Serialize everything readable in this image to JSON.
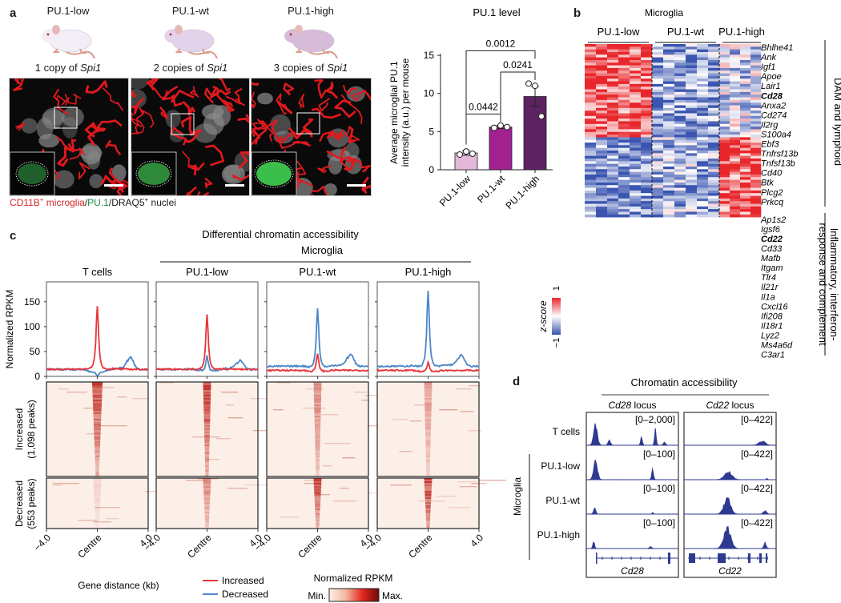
{
  "panel_a": {
    "letter": "a",
    "groups": [
      {
        "name": "PU.1-low",
        "copies_prefix": "1 copy of ",
        "gene": "Spi1",
        "mouse_color": "#f3eef6"
      },
      {
        "name": "PU.1-wt",
        "copies_prefix": "2 copies of ",
        "gene": "Spi1",
        "mouse_color": "#e2d3ea"
      },
      {
        "name": "PU.1-high",
        "copies_prefix": "3 copies of ",
        "gene": "Spi1",
        "mouse_color": "#d6bcd8"
      }
    ],
    "stain_caption": {
      "part1": "CD11B",
      "part1_sup": "+",
      "part1_rest": " microglia",
      "sep1": "/",
      "part2": "PU.1",
      "sep2": "/",
      "part3": "DRAQ5",
      "part3_sup": "+",
      "part3_rest": " nuclei"
    },
    "colors": {
      "cd11b": "#d7262b",
      "pu1": "#1a8a3a",
      "nuclei": "#cccccc"
    }
  },
  "chart_data": [
    {
      "id": "pu1-level",
      "type": "bar",
      "title": "PU.1 level",
      "ylabel_line1": "Average microglial PU.1",
      "ylabel_line2": "intensity (a.u.) per mouse",
      "categories": [
        "PU.1-low",
        "PU.1-wt",
        "PU.1-high"
      ],
      "values": [
        2.2,
        5.6,
        9.6
      ],
      "error": [
        0.3,
        0.2,
        1.3
      ],
      "points": [
        [
          2.0,
          2.4,
          2.1
        ],
        [
          5.5,
          5.8,
          5.6
        ],
        [
          11.3,
          11.0,
          7.0
        ]
      ],
      "colors": [
        "#e4b8d8",
        "#a3208f",
        "#5c2262"
      ],
      "ylim": [
        0,
        17
      ],
      "yticks": [
        0,
        5,
        10,
        15
      ],
      "significance": [
        {
          "from": 0,
          "to": 1,
          "label": "0.0442"
        },
        {
          "from": 1,
          "to": 2,
          "label": "0.0241"
        },
        {
          "from": 0,
          "to": 2,
          "label": "0.0012"
        }
      ]
    },
    {
      "id": "rna-heatmap",
      "type": "heatmap",
      "title": "Microglia",
      "groups": [
        "PU.1-low",
        "PU.1-wt",
        "PU.1-high"
      ],
      "columns_per_group": [
        6,
        6,
        4
      ],
      "colorbar": {
        "label": "z-score",
        "min": "−1",
        "max": "1",
        "low_color": "#3a55b0",
        "mid_color": "#ffffff",
        "high_color": "#e8262b"
      },
      "gene_sets": [
        {
          "label": "DAM and lymphoid",
          "genes": [
            "Bhlhe41",
            "Ank",
            "Igf1",
            "Apoe",
            "Lair1",
            "Cd28",
            "Anxa2",
            "Cd274",
            "Il2rg",
            "S100a4",
            "Ebf3",
            "Tnfrsf13b",
            "Tnfsf13b",
            "Cd40",
            "Btk",
            "Plcg2",
            "Prkcq"
          ],
          "bold": [
            "Cd28"
          ],
          "pattern": [
            0.75,
            -0.55,
            -0.25
          ]
        },
        {
          "label_line1": "Inflammatory, interferon-",
          "label_line2": "response and complement",
          "genes": [
            "Ap1s2",
            "Igsf6",
            "Cd22",
            "Cd33",
            "Mafb",
            "Itgam",
            "Tlr4",
            "Il21r",
            "Il1a",
            "Cxcl16",
            "Ifi208",
            "Il18r1",
            "Lyz2",
            "Ms4a6d",
            "C3ar1"
          ],
          "bold": [
            "Cd22"
          ],
          "pattern": [
            -0.65,
            -0.45,
            0.75
          ]
        }
      ]
    },
    {
      "id": "atac-profiles",
      "type": "line",
      "title": "Differential chromatin accessibility",
      "subtitle": "Microglia",
      "ylabel": "Normalized RPKM",
      "xlabel": "Gene distance (kb)",
      "ylim": [
        0,
        190
      ],
      "yticks": [
        0,
        50,
        100,
        150
      ],
      "xticks": [
        "−4.0",
        "Centre",
        "4.0"
      ],
      "panels": [
        {
          "name": "T cells",
          "increased_peak": 148,
          "decreased_peak": 8,
          "increased_base": 14,
          "decreased_base": 14,
          "decreased_bump": 38
        },
        {
          "name": "PU.1-low",
          "increased_peak": 131,
          "decreased_peak": 48,
          "increased_base": 14,
          "decreased_base": 14,
          "decreased_bump": 32
        },
        {
          "name": "PU.1-wt",
          "increased_peak": 50,
          "decreased_peak": 146,
          "increased_base": 12,
          "decreased_base": 20,
          "decreased_bump": 44
        },
        {
          "name": "PU.1-high",
          "increased_peak": 33,
          "decreased_peak": 181,
          "increased_base": 12,
          "decreased_base": 20,
          "decreased_bump": 42
        }
      ],
      "legend": [
        {
          "label": "Increased",
          "color": "#e8353a"
        },
        {
          "label": "Decreased",
          "color": "#4a86c8"
        }
      ],
      "legend_position": "bottom"
    },
    {
      "id": "atac-heatmaps",
      "type": "heatmap",
      "row_groups": [
        {
          "line1": "Increased",
          "line2": "(1,098 peaks)"
        },
        {
          "line1": "Decreased",
          "line2": "(553 peaks)"
        }
      ],
      "colorbar": {
        "title": "Normalized RPKM",
        "min": "Min.",
        "max": "Max.",
        "colors": [
          "#fcefe8",
          "#f4b6a0",
          "#e4281f",
          "#6f0b0b"
        ]
      },
      "centre_intensity": {
        "increased": [
          0.85,
          0.9,
          0.55,
          0.45
        ],
        "decreased": [
          0.15,
          0.55,
          0.9,
          0.95
        ]
      }
    },
    {
      "id": "genome-tracks",
      "type": "area",
      "title": "Chromatin accessibility",
      "group_label": "Microglia",
      "loci": [
        {
          "gene": "Cd28",
          "suffix": " locus",
          "ranges": [
            "[0–2,000]",
            "[0–100]",
            "[0–100]",
            "[0–100]"
          ]
        },
        {
          "gene": "Cd22",
          "suffix": " locus",
          "ranges": [
            "[0–422]",
            "[0–422]",
            "[0–422]",
            "[0–422]"
          ]
        }
      ],
      "tracks": [
        "T cells",
        "PU.1-low",
        "PU.1-wt",
        "PU.1-high"
      ],
      "track_color": "#2e3a90"
    }
  ],
  "panel_b": {
    "letter": "b"
  },
  "panel_c": {
    "letter": "c"
  },
  "panel_d": {
    "letter": "d"
  }
}
